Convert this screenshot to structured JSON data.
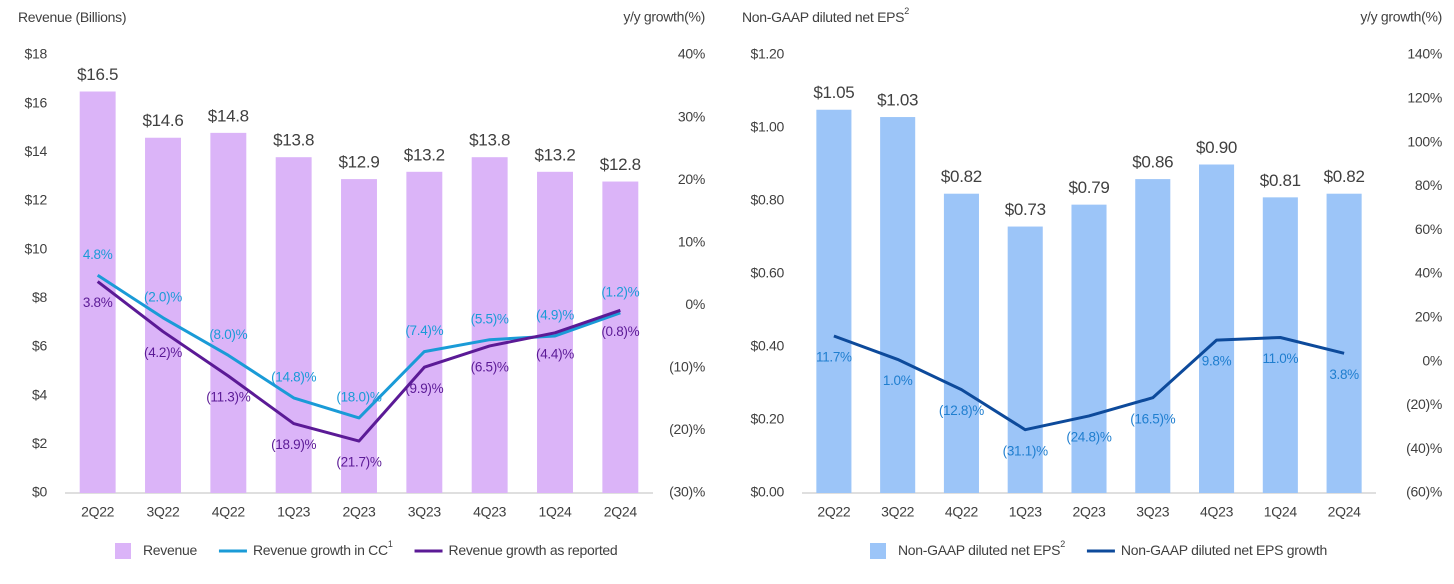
{
  "chart_data": [
    {
      "type": "bar",
      "title": "Revenue (Billions)",
      "y2_title": "y/y growth(%)",
      "categories": [
        "2Q22",
        "3Q22",
        "4Q22",
        "1Q23",
        "2Q23",
        "3Q23",
        "4Q23",
        "1Q24",
        "2Q24"
      ],
      "ylim": [
        0,
        18
      ],
      "yticks": [
        {
          "value": 0,
          "label": "$0"
        },
        {
          "value": 2,
          "label": "$2"
        },
        {
          "value": 4,
          "label": "$4"
        },
        {
          "value": 6,
          "label": "$6"
        },
        {
          "value": 8,
          "label": "$8"
        },
        {
          "value": 10,
          "label": "$10"
        },
        {
          "value": 12,
          "label": "$12"
        },
        {
          "value": 14,
          "label": "$14"
        },
        {
          "value": 16,
          "label": "$16"
        },
        {
          "value": 18,
          "label": "$18"
        }
      ],
      "y2lim": [
        -30,
        40
      ],
      "y2ticks": [
        {
          "value": -30,
          "label": "(30)%"
        },
        {
          "value": -20,
          "label": "(20)%"
        },
        {
          "value": -10,
          "label": "(10)%"
        },
        {
          "value": 0,
          "label": "0%"
        },
        {
          "value": 10,
          "label": "10%"
        },
        {
          "value": 20,
          "label": "20%"
        },
        {
          "value": 30,
          "label": "30%"
        },
        {
          "value": 40,
          "label": "40%"
        }
      ],
      "series": [
        {
          "name": "Revenue",
          "type": "bar",
          "color": "#dbb4f8",
          "values": [
            16.5,
            14.6,
            14.8,
            13.8,
            12.9,
            13.2,
            13.8,
            13.2,
            12.8
          ],
          "value_labels": [
            "$16.5",
            "$14.6",
            "$14.8",
            "$13.8",
            "$12.9",
            "$13.2",
            "$13.8",
            "$13.2",
            "$12.8"
          ]
        },
        {
          "name": "Revenue growth in CC",
          "footnote": "1",
          "type": "line",
          "axis": "y2",
          "color": "#1a9bd7",
          "values": [
            4.8,
            -2.0,
            -8.0,
            -14.8,
            -18.0,
            -7.4,
            -5.5,
            -4.9,
            -1.2
          ],
          "value_labels": [
            "4.8%",
            "(2.0)%",
            "(8.0)%",
            "(14.8)%",
            "(18.0)%",
            "(7.4)%",
            "(5.5)%",
            "(4.9)%",
            "(1.2)%"
          ]
        },
        {
          "name": "Revenue growth as reported",
          "type": "line",
          "axis": "y2",
          "color": "#5b1a96",
          "values": [
            3.8,
            -4.2,
            -11.3,
            -18.9,
            -21.7,
            -9.9,
            -6.5,
            -4.4,
            -0.8
          ],
          "value_labels": [
            "3.8%",
            "(4.2)%",
            "(11.3)%",
            "(18.9)%",
            "(21.7)%",
            "(9.9)%",
            "(6.5)%",
            "(4.4)%",
            "(0.8)%"
          ]
        }
      ]
    },
    {
      "type": "bar",
      "title": "Non-GAAP diluted net EPS",
      "title_footnote": "2",
      "y2_title": "y/y growth(%)",
      "categories": [
        "2Q22",
        "3Q22",
        "4Q22",
        "1Q23",
        "2Q23",
        "3Q23",
        "4Q23",
        "1Q24",
        "2Q24"
      ],
      "ylim": [
        0,
        1.2
      ],
      "yticks": [
        {
          "value": 0,
          "label": "$0.00"
        },
        {
          "value": 0.2,
          "label": "$0.20"
        },
        {
          "value": 0.4,
          "label": "$0.40"
        },
        {
          "value": 0.6,
          "label": "$0.60"
        },
        {
          "value": 0.8,
          "label": "$0.80"
        },
        {
          "value": 1.0,
          "label": "$1.00"
        },
        {
          "value": 1.2,
          "label": "$1.20"
        }
      ],
      "y2lim": [
        -60,
        140
      ],
      "y2ticks": [
        {
          "value": -60,
          "label": "(60)%"
        },
        {
          "value": -40,
          "label": "(40)%"
        },
        {
          "value": -20,
          "label": "(20)%"
        },
        {
          "value": 0,
          "label": "0%"
        },
        {
          "value": 20,
          "label": "20%"
        },
        {
          "value": 40,
          "label": "40%"
        },
        {
          "value": 60,
          "label": "60%"
        },
        {
          "value": 80,
          "label": "80%"
        },
        {
          "value": 100,
          "label": "100%"
        },
        {
          "value": 120,
          "label": "120%"
        },
        {
          "value": 140,
          "label": "140%"
        }
      ],
      "series": [
        {
          "name": "Non-GAAP diluted net EPS",
          "footnote": "2",
          "type": "bar",
          "color": "#9cc5f8",
          "values": [
            1.05,
            1.03,
            0.82,
            0.73,
            0.79,
            0.86,
            0.9,
            0.81,
            0.82
          ],
          "value_labels": [
            "$1.05",
            "$1.03",
            "$0.82",
            "$0.73",
            "$0.79",
            "$0.86",
            "$0.90",
            "$0.81",
            "$0.82"
          ]
        },
        {
          "name": "Non-GAAP diluted net EPS growth",
          "type": "line",
          "axis": "y2",
          "color": "#0d4a9b",
          "label_color": "#1f7ecf",
          "values": [
            11.7,
            1.0,
            -12.8,
            -31.1,
            -24.8,
            -16.5,
            9.8,
            11.0,
            3.8
          ],
          "value_labels": [
            "11.7%",
            "1.0%",
            "(12.8)%",
            "(31.1)%",
            "(24.8)%",
            "(16.5)%",
            "9.8%",
            "11.0%",
            "3.8%"
          ]
        }
      ]
    }
  ]
}
